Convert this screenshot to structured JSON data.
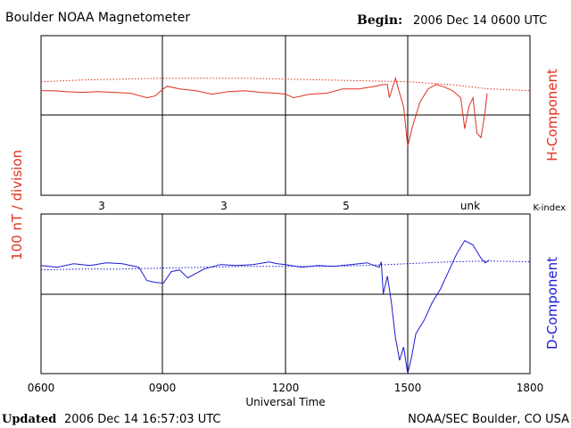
{
  "header": {
    "title": "Boulder NOAA Magnetometer",
    "begin_label": "Begin:",
    "begin_value": "2006 Dec 14 0600 UTC"
  },
  "footer": {
    "updated_label": "Updated",
    "updated_value": "2006 Dec 14 16:57:03 UTC",
    "source": "NOAA/SEC Boulder, CO USA"
  },
  "colors": {
    "h_component": "#e0301e",
    "d_component": "#1a1ad6",
    "axes": "#000000"
  },
  "chart_data": [
    {
      "type": "line",
      "panel": "top",
      "ylabel": "H-Component",
      "xlim": [
        6,
        18
      ],
      "ylim": [
        -0.9,
        0.9
      ],
      "grid": true,
      "series": [
        {
          "style": "solid",
          "x": [
            6.0,
            6.3,
            6.6,
            7.0,
            7.4,
            7.8,
            8.2,
            8.6,
            8.8,
            9.0,
            9.1,
            9.4,
            9.8,
            10.2,
            10.6,
            11.0,
            11.4,
            11.8,
            12.0,
            12.2,
            12.6,
            13.0,
            13.4,
            13.8,
            14.2,
            14.4,
            14.5,
            14.55,
            14.7,
            14.8,
            14.9,
            15.0,
            15.1,
            15.2,
            15.3,
            15.5,
            15.7,
            15.9,
            16.1,
            16.3,
            16.4,
            16.5,
            16.6,
            16.7,
            16.8,
            16.9,
            16.95
          ],
          "y": [
            0.28,
            0.28,
            0.27,
            0.26,
            0.27,
            0.26,
            0.25,
            0.2,
            0.22,
            0.3,
            0.33,
            0.3,
            0.28,
            0.24,
            0.27,
            0.28,
            0.26,
            0.25,
            0.24,
            0.2,
            0.24,
            0.25,
            0.3,
            0.3,
            0.33,
            0.35,
            0.35,
            0.2,
            0.42,
            0.25,
            0.1,
            -0.35,
            -0.15,
            0.0,
            0.15,
            0.3,
            0.35,
            0.32,
            0.28,
            0.2,
            -0.15,
            0.1,
            0.2,
            -0.2,
            -0.25,
            0.05,
            0.25
          ]
        },
        {
          "style": "dotted",
          "x": [
            6,
            7,
            8,
            9,
            10,
            11,
            12,
            13,
            14,
            15,
            16,
            17,
            18
          ],
          "y": [
            0.38,
            0.4,
            0.41,
            0.42,
            0.42,
            0.42,
            0.41,
            0.4,
            0.39,
            0.38,
            0.35,
            0.3,
            0.28
          ]
        }
      ]
    },
    {
      "type": "line",
      "panel": "bottom",
      "ylabel": "D-Component",
      "xlim": [
        6,
        18
      ],
      "ylim": [
        -0.9,
        0.9
      ],
      "grid": true,
      "series": [
        {
          "style": "solid",
          "x": [
            6.0,
            6.4,
            6.8,
            7.2,
            7.6,
            8.0,
            8.4,
            8.6,
            8.8,
            9.0,
            9.2,
            9.4,
            9.6,
            10.0,
            10.4,
            10.8,
            11.2,
            11.6,
            11.8,
            12.0,
            12.4,
            12.8,
            13.2,
            13.6,
            14.0,
            14.3,
            14.35,
            14.4,
            14.5,
            14.6,
            14.7,
            14.8,
            14.9,
            15.0,
            15.1,
            15.2,
            15.4,
            15.6,
            15.8,
            16.0,
            16.2,
            16.4,
            16.6,
            16.8,
            16.9,
            17.0
          ],
          "y": [
            0.32,
            0.3,
            0.34,
            0.32,
            0.35,
            0.34,
            0.3,
            0.15,
            0.13,
            0.12,
            0.25,
            0.27,
            0.18,
            0.28,
            0.33,
            0.32,
            0.33,
            0.36,
            0.34,
            0.33,
            0.3,
            0.32,
            0.31,
            0.33,
            0.35,
            0.3,
            0.36,
            0.0,
            0.2,
            -0.1,
            -0.5,
            -0.75,
            -0.6,
            -0.9,
            -0.7,
            -0.45,
            -0.3,
            -0.1,
            0.05,
            0.25,
            0.45,
            0.6,
            0.55,
            0.4,
            0.35,
            0.38
          ]
        },
        {
          "style": "dotted",
          "x": [
            6,
            7,
            8,
            9,
            10,
            11,
            12,
            13,
            14,
            15,
            16,
            17,
            18
          ],
          "y": [
            0.27,
            0.28,
            0.28,
            0.29,
            0.3,
            0.31,
            0.31,
            0.31,
            0.32,
            0.34,
            0.36,
            0.37,
            0.36
          ]
        }
      ]
    }
  ],
  "k_index": {
    "label": "K-index",
    "values": [
      "3",
      "3",
      "5",
      "unk"
    ]
  },
  "x_axis": {
    "label": "Universal Time",
    "ticks": [
      "0600",
      "0900",
      "1200",
      "1500",
      "1800"
    ]
  },
  "y_axis": {
    "label": "100 nT / division"
  }
}
